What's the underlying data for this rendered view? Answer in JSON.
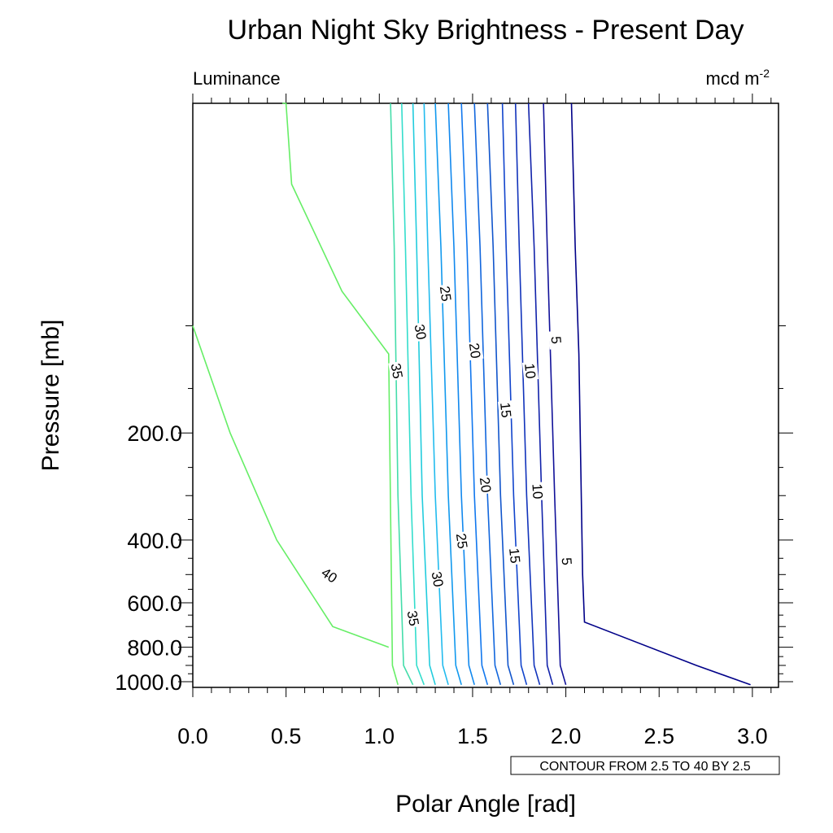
{
  "chart_data": {
    "type": "contour",
    "title": "Urban Night Sky Brightness - Present Day",
    "left_string": "Luminance",
    "right_string": "mcd m",
    "right_string_superscript": "-2",
    "xlabel": "Polar Angle [rad]",
    "ylabel": "Pressure [mb]",
    "xlim": [
      0.0,
      3.14
    ],
    "x_ticks": [
      "0.0",
      "0.5",
      "1.0",
      "1.5",
      "2.0",
      "2.5",
      "3.0"
    ],
    "y_ticks": [
      "200.0",
      "400.0",
      "600.0",
      "800.0",
      "1000.0"
    ],
    "y_scale": "log",
    "contour_info": "CONTOUR FROM 2.5 TO 40 BY 2.5",
    "levels": [
      2.5,
      5,
      7.5,
      10,
      12.5,
      15,
      17.5,
      20,
      22.5,
      25,
      27.5,
      30,
      32.5,
      35,
      37.5,
      40
    ],
    "contours": [
      {
        "level": 40,
        "color": "#66ee66",
        "label": "40",
        "x_at": [
          0.0,
          0.2,
          0.45,
          0.75,
          1.05
        ],
        "p_at": [
          100,
          200,
          400,
          700,
          800
        ]
      },
      {
        "level": 37.5,
        "color": "#66ee66",
        "x_at": [
          0.48,
          0.5,
          0.53,
          0.8,
          1.05,
          1.07,
          1.1
        ],
        "p_at": [
          1,
          10,
          40,
          80,
          120,
          900,
          1020
        ]
      },
      {
        "level": 35,
        "color": "#44ddaa",
        "label": "35",
        "x_at": [
          1.06,
          1.08,
          1.1,
          1.13,
          1.18
        ],
        "p_at": [
          1,
          60,
          300,
          900,
          1020
        ]
      },
      {
        "level": 32.5,
        "color": "#33ddcc",
        "x_at": [
          1.12,
          1.14,
          1.17,
          1.2,
          1.24
        ],
        "p_at": [
          1,
          60,
          300,
          900,
          1020
        ]
      },
      {
        "level": 30,
        "color": "#22ccdd",
        "label": "30",
        "x_at": [
          1.18,
          1.2,
          1.23,
          1.27,
          1.3
        ],
        "p_at": [
          1,
          60,
          300,
          900,
          1020
        ]
      },
      {
        "level": 27.5,
        "color": "#22bbee",
        "x_at": [
          1.24,
          1.26,
          1.3,
          1.34,
          1.37
        ],
        "p_at": [
          1,
          60,
          300,
          900,
          1020
        ]
      },
      {
        "level": 25,
        "color": "#1199ee",
        "label": "25",
        "x_at": [
          1.3,
          1.33,
          1.37,
          1.41,
          1.44
        ],
        "p_at": [
          1,
          60,
          300,
          900,
          1020
        ]
      },
      {
        "level": 22.5,
        "color": "#1188ee",
        "x_at": [
          1.37,
          1.4,
          1.44,
          1.48,
          1.51
        ],
        "p_at": [
          1,
          60,
          300,
          900,
          1020
        ]
      },
      {
        "level": 20,
        "color": "#1177ee",
        "label": "20",
        "x_at": [
          1.44,
          1.47,
          1.51,
          1.55,
          1.58
        ],
        "p_at": [
          1,
          60,
          300,
          900,
          1020
        ]
      },
      {
        "level": 17.5,
        "color": "#1166dd",
        "x_at": [
          1.51,
          1.54,
          1.58,
          1.62,
          1.65
        ],
        "p_at": [
          1,
          60,
          300,
          900,
          1020
        ]
      },
      {
        "level": 15,
        "color": "#1155cc",
        "label": "15",
        "x_at": [
          1.58,
          1.61,
          1.65,
          1.69,
          1.72
        ],
        "p_at": [
          1,
          60,
          300,
          900,
          1020
        ]
      },
      {
        "level": 12.5,
        "color": "#1144cc",
        "x_at": [
          1.66,
          1.68,
          1.72,
          1.76,
          1.79
        ],
        "p_at": [
          1,
          60,
          300,
          900,
          1020
        ]
      },
      {
        "level": 10,
        "color": "#1133bb",
        "label": "10",
        "x_at": [
          1.73,
          1.75,
          1.79,
          1.83,
          1.86
        ],
        "p_at": [
          1,
          60,
          300,
          900,
          1020
        ]
      },
      {
        "level": 7.5,
        "color": "#1122aa",
        "x_at": [
          1.8,
          1.83,
          1.87,
          1.9,
          1.93
        ],
        "p_at": [
          1,
          60,
          300,
          900,
          1020
        ]
      },
      {
        "level": 5,
        "color": "#111199",
        "label": "5",
        "x_at": [
          1.88,
          1.9,
          1.94,
          1.97,
          2.0
        ],
        "p_at": [
          1,
          60,
          300,
          900,
          1020
        ]
      },
      {
        "level": 2.5,
        "color": "#000088",
        "x_at": [
          2.03,
          2.05,
          2.07,
          2.09,
          2.1,
          2.7,
          2.99
        ],
        "p_at": [
          1,
          60,
          120,
          500,
          680,
          900,
          1020
        ]
      }
    ]
  },
  "labels": [
    {
      "text": "40",
      "color": "#000"
    },
    {
      "text": "35",
      "color": "#000"
    },
    {
      "text": "35",
      "color": "#000"
    },
    {
      "text": "30",
      "color": "#000"
    },
    {
      "text": "30",
      "color": "#000"
    },
    {
      "text": "25",
      "color": "#000"
    },
    {
      "text": "25",
      "color": "#000"
    },
    {
      "text": "20",
      "color": "#000"
    },
    {
      "text": "20",
      "color": "#000"
    },
    {
      "text": "15",
      "color": "#000"
    },
    {
      "text": "15",
      "color": "#000"
    },
    {
      "text": "10",
      "color": "#000"
    },
    {
      "text": "10",
      "color": "#000"
    },
    {
      "text": "5",
      "color": "#000"
    },
    {
      "text": "5",
      "color": "#000"
    }
  ]
}
